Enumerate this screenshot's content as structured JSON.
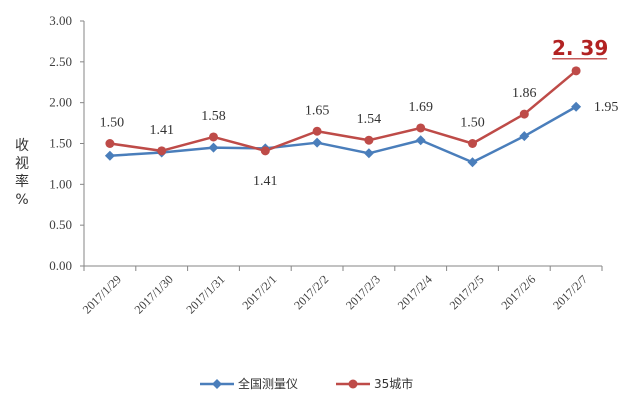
{
  "chart_data": {
    "type": "line",
    "ylabel": "收视率%",
    "ylim": [
      0,
      3.0
    ],
    "yticks": [
      "0.00",
      "0.50",
      "1.00",
      "1.50",
      "2.00",
      "2.50",
      "3.00"
    ],
    "categories": [
      "2017/1/29",
      "2017/1/30",
      "2017/1/31",
      "2017/2/1",
      "2017/2/2",
      "2017/2/3",
      "2017/2/4",
      "2017/2/5",
      "2017/2/6",
      "2017/2/7"
    ],
    "series": [
      {
        "name": "全国测量仪",
        "color": "#4a7ebb",
        "marker": "diamond",
        "values": [
          1.35,
          1.39,
          1.45,
          1.44,
          1.51,
          1.38,
          1.54,
          1.27,
          1.59,
          1.95
        ],
        "labels": [
          "",
          "",
          "",
          "",
          "",
          "",
          "",
          "",
          "",
          "1.95"
        ]
      },
      {
        "name": "35城市",
        "color": "#be4b48",
        "marker": "circle",
        "values": [
          1.5,
          1.41,
          1.58,
          1.41,
          1.65,
          1.54,
          1.69,
          1.5,
          1.86,
          2.39
        ],
        "labels": [
          "1.50",
          "1.41",
          "1.58",
          "1.41",
          "1.65",
          "1.54",
          "1.69",
          "1.50",
          "1.86",
          "2. 39"
        ]
      }
    ],
    "highlight": {
      "label": "2. 39",
      "color": "#b22222"
    },
    "legend": {
      "position": "bottom"
    },
    "grid": false
  }
}
